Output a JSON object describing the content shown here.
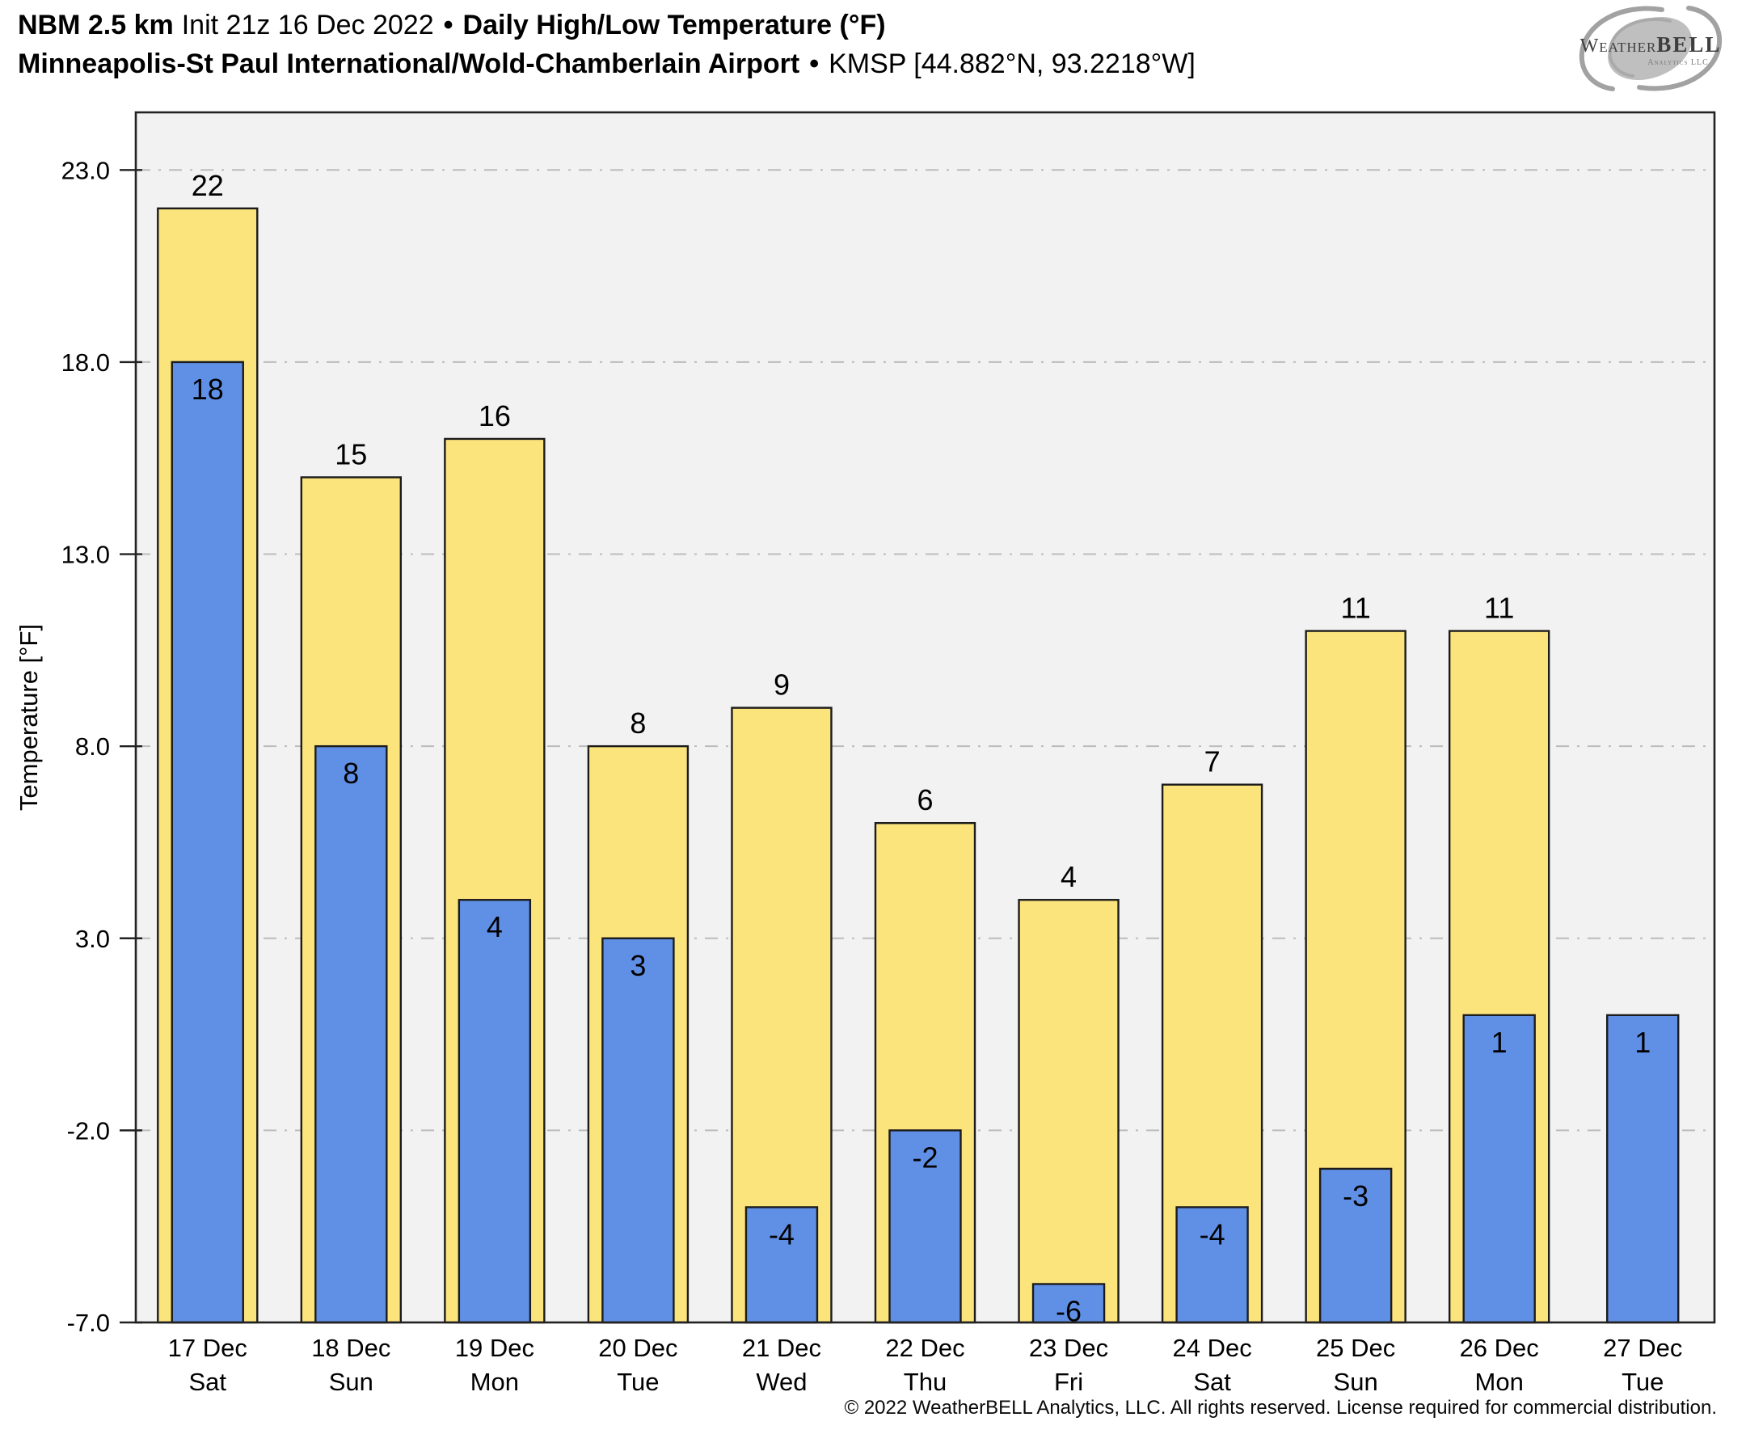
{
  "header": {
    "model": "NBM 2.5 km",
    "init": "Init 21z 16 Dec 2022",
    "separator": "•",
    "product": "Daily High/Low Temperature (°F)",
    "station_name": "Minneapolis-St Paul International/Wold-Chamberlain Airport",
    "station_id": "KMSP [44.882°N, 93.2218°W]"
  },
  "logo": {
    "brand_weather": "Weather",
    "brand_bell": "BELL",
    "subtitle": "Analytics LLC"
  },
  "chart_data": {
    "type": "bar",
    "title": "Daily High/Low Temperature (°F)",
    "ylabel": "Temperature [°F]",
    "ylim": [
      -7.0,
      24.5
    ],
    "yticks": [
      23.0,
      18.0,
      13.0,
      8.0,
      3.0,
      -2.0,
      -7.0
    ],
    "grid": true,
    "legend": "none",
    "categories": [
      {
        "date": "17 Dec",
        "day": "Sat"
      },
      {
        "date": "18 Dec",
        "day": "Sun"
      },
      {
        "date": "19 Dec",
        "day": "Mon"
      },
      {
        "date": "20 Dec",
        "day": "Tue"
      },
      {
        "date": "21 Dec",
        "day": "Wed"
      },
      {
        "date": "22 Dec",
        "day": "Thu"
      },
      {
        "date": "23 Dec",
        "day": "Fri"
      },
      {
        "date": "24 Dec",
        "day": "Sat"
      },
      {
        "date": "25 Dec",
        "day": "Sun"
      },
      {
        "date": "26 Dec",
        "day": "Mon"
      },
      {
        "date": "27 Dec",
        "day": "Tue"
      }
    ],
    "series": [
      {
        "name": "High",
        "color": "#fce47d",
        "values": [
          22,
          15,
          16,
          8,
          9,
          6,
          4,
          7,
          11,
          11,
          null
        ]
      },
      {
        "name": "Low",
        "color": "#6090e6",
        "values": [
          18,
          8,
          4,
          3,
          -4,
          -2,
          -6,
          -4,
          -3,
          1,
          1
        ]
      }
    ]
  },
  "footer": {
    "copyright": "© 2022 WeatherBELL Analytics, LLC. All rights reserved. License required for commercial distribution."
  }
}
